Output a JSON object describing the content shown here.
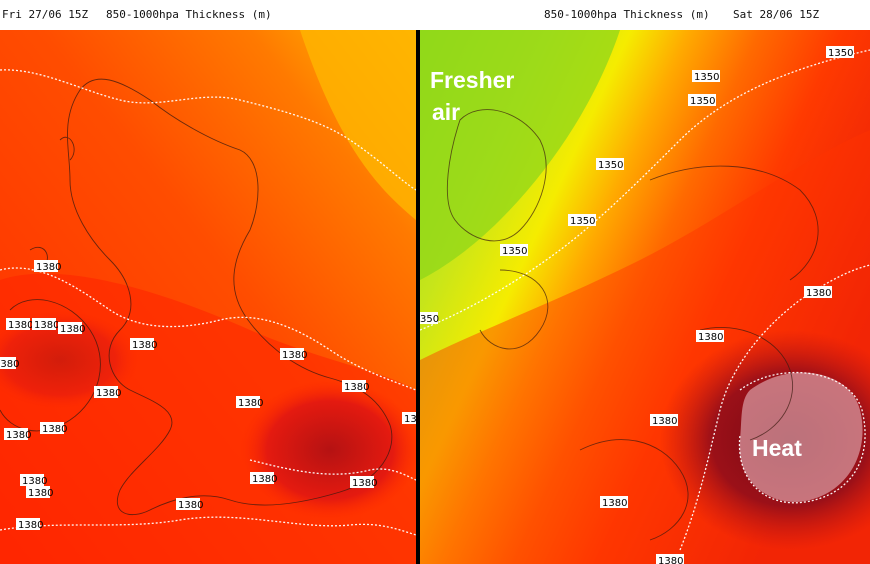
{
  "left_panel": {
    "date_label": "Fri 27/06 15Z",
    "field_label": "850-1000hpa Thickness (m)",
    "contour_labels": [
      "1380",
      "1380",
      "1380",
      "1380",
      "1380",
      "1380",
      "1380",
      "1380",
      "1380",
      "1380",
      "1380",
      "1380",
      "1380",
      "1380",
      "1380",
      "1380",
      "1380",
      "1380",
      "1380",
      "13"
    ]
  },
  "right_panel": {
    "date_label": "Sat 28/06 15Z",
    "field_label": "850-1000hpa Thickness (m)",
    "contour_labels": [
      "1350",
      "1350",
      "1350",
      "1350",
      "1350",
      "1350",
      "350",
      "1380",
      "1380",
      "1380",
      "1380",
      "1380"
    ],
    "annotations": {
      "fresher_line1": "Fresher",
      "fresher_line2": "air",
      "heat": "Heat"
    }
  },
  "colors": {
    "hot_core": "#8b0f17",
    "hot": "#d41414",
    "warm_red": "#ff2a00",
    "orange_red": "#ff4d00",
    "orange": "#ff7a00",
    "amber": "#ffaa00",
    "yellow": "#ffd700",
    "pale_yellow": "#f5ec00",
    "yellow_green": "#c6e51a",
    "green": "#96dd18",
    "divider": "#000000"
  }
}
